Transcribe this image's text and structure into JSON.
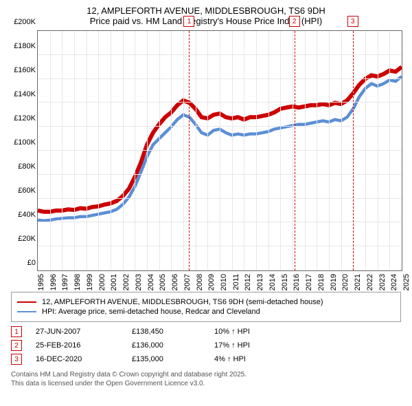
{
  "title": {
    "line1": "12, AMPLEFORTH AVENUE, MIDDLESBROUGH, TS6 9DH",
    "line2": "Price paid vs. HM Land Registry's House Price Index (HPI)"
  },
  "chart": {
    "type": "line",
    "ylim": [
      0,
      200000
    ],
    "ytick_step": 20000,
    "yticks": [
      "£0",
      "£20K",
      "£40K",
      "£60K",
      "£80K",
      "£100K",
      "£120K",
      "£140K",
      "£160K",
      "£180K",
      "£200K"
    ],
    "x_start_year": 1995,
    "x_end_year": 2025,
    "xticks": [
      "1995",
      "1996",
      "1997",
      "1998",
      "1999",
      "2000",
      "2001",
      "2002",
      "2003",
      "2004",
      "2005",
      "2006",
      "2007",
      "2008",
      "2009",
      "2010",
      "2011",
      "2012",
      "2013",
      "2014",
      "2015",
      "2016",
      "2017",
      "2018",
      "2019",
      "2020",
      "2021",
      "2022",
      "2023",
      "2024",
      "2025"
    ],
    "background_color": "#ffffff",
    "grid_color": "#e6e6e6",
    "border_color": "#666666",
    "series": [
      {
        "name": "property",
        "color": "#cc0000",
        "width": 2,
        "data": [
          [
            1995,
            50000
          ],
          [
            1995.5,
            49000
          ],
          [
            1996,
            49000
          ],
          [
            1996.5,
            50000
          ],
          [
            1997,
            50000
          ],
          [
            1997.5,
            51000
          ],
          [
            1998,
            50500
          ],
          [
            1998.5,
            52000
          ],
          [
            1999,
            51500
          ],
          [
            1999.5,
            53000
          ],
          [
            2000,
            53500
          ],
          [
            2000.5,
            55000
          ],
          [
            2001,
            56000
          ],
          [
            2001.5,
            58000
          ],
          [
            2002,
            62000
          ],
          [
            2002.5,
            68000
          ],
          [
            2003,
            78000
          ],
          [
            2003.5,
            90000
          ],
          [
            2004,
            105000
          ],
          [
            2004.5,
            115000
          ],
          [
            2005,
            122000
          ],
          [
            2005.5,
            128000
          ],
          [
            2006,
            132000
          ],
          [
            2006.5,
            138000
          ],
          [
            2007,
            142000
          ],
          [
            2007.5,
            140000
          ],
          [
            2008,
            135000
          ],
          [
            2008.5,
            128000
          ],
          [
            2009,
            127000
          ],
          [
            2009.5,
            130000
          ],
          [
            2010,
            131000
          ],
          [
            2010.5,
            128000
          ],
          [
            2011,
            127000
          ],
          [
            2011.5,
            128000
          ],
          [
            2012,
            126000
          ],
          [
            2012.5,
            128000
          ],
          [
            2013,
            128000
          ],
          [
            2013.5,
            129000
          ],
          [
            2014,
            130000
          ],
          [
            2014.5,
            132000
          ],
          [
            2015,
            135000
          ],
          [
            2015.5,
            136000
          ],
          [
            2016,
            137000
          ],
          [
            2016.5,
            136000
          ],
          [
            2017,
            137000
          ],
          [
            2017.5,
            138000
          ],
          [
            2018,
            138000
          ],
          [
            2018.5,
            139000
          ],
          [
            2019,
            138000
          ],
          [
            2019.5,
            140000
          ],
          [
            2020,
            139000
          ],
          [
            2020.5,
            142000
          ],
          [
            2021,
            148000
          ],
          [
            2021.5,
            155000
          ],
          [
            2022,
            160000
          ],
          [
            2022.5,
            163000
          ],
          [
            2023,
            162000
          ],
          [
            2023.5,
            164000
          ],
          [
            2024,
            167000
          ],
          [
            2024.5,
            166000
          ],
          [
            2025,
            170000
          ]
        ]
      },
      {
        "name": "hpi",
        "color": "#5b8fd6",
        "width": 1.5,
        "data": [
          [
            1995,
            42000
          ],
          [
            1995.5,
            41500
          ],
          [
            1996,
            42000
          ],
          [
            1996.5,
            43000
          ],
          [
            1997,
            43500
          ],
          [
            1997.5,
            44000
          ],
          [
            1998,
            44000
          ],
          [
            1998.5,
            45000
          ],
          [
            1999,
            45000
          ],
          [
            1999.5,
            46000
          ],
          [
            2000,
            47000
          ],
          [
            2000.5,
            48000
          ],
          [
            2001,
            49000
          ],
          [
            2001.5,
            51000
          ],
          [
            2002,
            55000
          ],
          [
            2002.5,
            61000
          ],
          [
            2003,
            70000
          ],
          [
            2003.5,
            82000
          ],
          [
            2004,
            95000
          ],
          [
            2004.5,
            105000
          ],
          [
            2005,
            110000
          ],
          [
            2005.5,
            115000
          ],
          [
            2006,
            120000
          ],
          [
            2006.5,
            126000
          ],
          [
            2007,
            130000
          ],
          [
            2007.5,
            128000
          ],
          [
            2008,
            122000
          ],
          [
            2008.5,
            115000
          ],
          [
            2009,
            113000
          ],
          [
            2009.5,
            117000
          ],
          [
            2010,
            118000
          ],
          [
            2010.5,
            115000
          ],
          [
            2011,
            113000
          ],
          [
            2011.5,
            114000
          ],
          [
            2012,
            113000
          ],
          [
            2012.5,
            114000
          ],
          [
            2013,
            114000
          ],
          [
            2013.5,
            115000
          ],
          [
            2014,
            116000
          ],
          [
            2014.5,
            118000
          ],
          [
            2015,
            119000
          ],
          [
            2015.5,
            120000
          ],
          [
            2016,
            121000
          ],
          [
            2016.5,
            122000
          ],
          [
            2017,
            122000
          ],
          [
            2017.5,
            123000
          ],
          [
            2018,
            124000
          ],
          [
            2018.5,
            125000
          ],
          [
            2019,
            124000
          ],
          [
            2019.5,
            126000
          ],
          [
            2020,
            125000
          ],
          [
            2020.5,
            128000
          ],
          [
            2021,
            135000
          ],
          [
            2021.5,
            145000
          ],
          [
            2022,
            152000
          ],
          [
            2022.5,
            156000
          ],
          [
            2023,
            154000
          ],
          [
            2023.5,
            156000
          ],
          [
            2024,
            159000
          ],
          [
            2024.5,
            158000
          ],
          [
            2025,
            162000
          ]
        ]
      }
    ],
    "events": [
      {
        "n": "1",
        "x": 2007.48,
        "date": "27-JUN-2007",
        "price": "£138,450",
        "change": "10% ↑ HPI"
      },
      {
        "n": "2",
        "x": 2016.15,
        "date": "25-FEB-2016",
        "price": "£136,000",
        "change": "17% ↑ HPI"
      },
      {
        "n": "3",
        "x": 2020.96,
        "date": "16-DEC-2020",
        "price": "£135,000",
        "change": "4% ↑ HPI"
      }
    ]
  },
  "legend": {
    "series1": {
      "label": "12, AMPLEFORTH AVENUE, MIDDLESBROUGH, TS6 9DH (semi-detached house)",
      "color": "#cc0000"
    },
    "series2": {
      "label": "HPI: Average price, semi-detached house, Redcar and Cleveland",
      "color": "#5b8fd6"
    }
  },
  "footnote": {
    "line1": "Contains HM Land Registry data © Crown copyright and database right 2025.",
    "line2": "This data is licensed under the Open Government Licence v3.0."
  }
}
